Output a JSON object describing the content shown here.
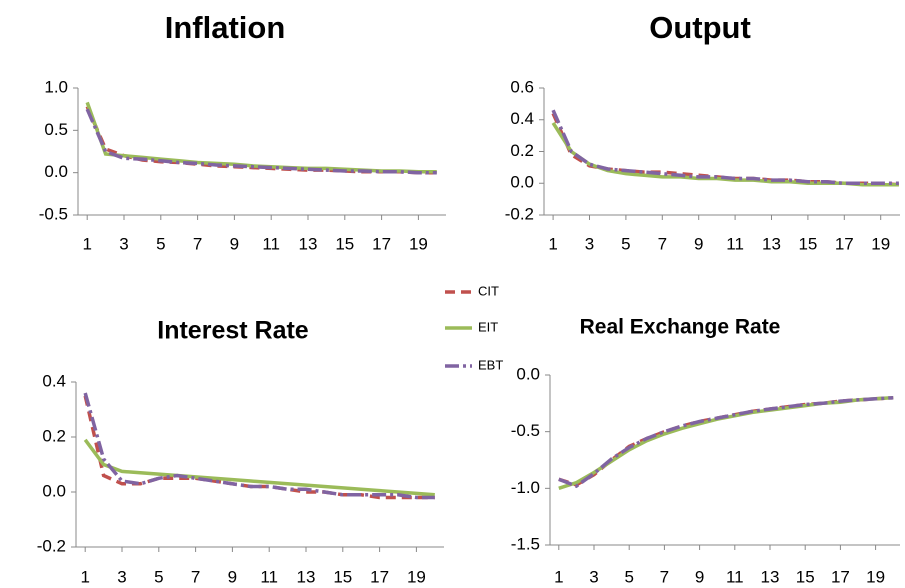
{
  "chart_data": [
    {
      "type": "line",
      "title": "Inflation",
      "x": [
        1,
        2,
        3,
        4,
        5,
        6,
        7,
        8,
        9,
        10,
        11,
        12,
        13,
        14,
        15,
        16,
        17,
        18,
        19,
        20
      ],
      "xlim": [
        0.5,
        20.5
      ],
      "xticks": [
        1,
        3,
        5,
        7,
        9,
        11,
        13,
        15,
        17,
        19
      ],
      "ylim": [
        -0.5,
        1
      ],
      "yticks": [
        -0.5,
        {
          "value": 0,
          "label": "0.0"
        },
        0.5,
        {
          "value": 1,
          "label": "1.0"
        }
      ],
      "series": [
        {
          "name": "CIT",
          "color": "#c0504d",
          "values": [
            0.78,
            0.28,
            0.2,
            0.15,
            0.13,
            0.12,
            0.1,
            0.08,
            0.07,
            0.06,
            0.05,
            0.04,
            0.03,
            0.03,
            0.02,
            0.01,
            0.01,
            0.01,
            0.0,
            0.0
          ]
        },
        {
          "name": "EIT",
          "color": "#9bbb59",
          "values": [
            0.83,
            0.22,
            0.2,
            0.18,
            0.16,
            0.14,
            0.12,
            0.11,
            0.1,
            0.08,
            0.07,
            0.06,
            0.05,
            0.05,
            0.04,
            0.03,
            0.02,
            0.02,
            0.01,
            0.01
          ]
        },
        {
          "name": "EBT",
          "color": "#8064a2",
          "values": [
            0.75,
            0.25,
            0.17,
            0.16,
            0.14,
            0.12,
            0.11,
            0.09,
            0.08,
            0.07,
            0.06,
            0.05,
            0.04,
            0.03,
            0.02,
            0.02,
            0.01,
            0.01,
            0.0,
            0.0
          ]
        }
      ]
    },
    {
      "type": "line",
      "title": "Output",
      "x": [
        1,
        2,
        3,
        4,
        5,
        6,
        7,
        8,
        9,
        10,
        11,
        12,
        13,
        14,
        15,
        16,
        17,
        18,
        19,
        20
      ],
      "xlim": [
        0.5,
        20.5
      ],
      "xticks": [
        1,
        3,
        5,
        7,
        9,
        11,
        13,
        15,
        17,
        19
      ],
      "ylim": [
        -0.2,
        0.6
      ],
      "yticks": [
        -0.2,
        {
          "value": 0,
          "label": "0.0"
        },
        0.2,
        0.4,
        0.6
      ],
      "series": [
        {
          "name": "CIT",
          "color": "#c0504d",
          "values": [
            0.44,
            0.18,
            0.11,
            0.09,
            0.08,
            0.07,
            0.07,
            0.06,
            0.05,
            0.04,
            0.03,
            0.03,
            0.02,
            0.02,
            0.01,
            0.01,
            0.0,
            0.0,
            0.0,
            -0.01
          ]
        },
        {
          "name": "EIT",
          "color": "#9bbb59",
          "values": [
            0.38,
            0.2,
            0.12,
            0.08,
            0.06,
            0.05,
            0.04,
            0.04,
            0.03,
            0.03,
            0.02,
            0.02,
            0.01,
            0.01,
            0.0,
            0.0,
            0.0,
            -0.01,
            -0.01,
            -0.01
          ]
        },
        {
          "name": "EBT",
          "color": "#8064a2",
          "values": [
            0.46,
            0.2,
            0.12,
            0.09,
            0.08,
            0.07,
            0.06,
            0.05,
            0.04,
            0.04,
            0.03,
            0.03,
            0.02,
            0.02,
            0.01,
            0.01,
            0.0,
            0.0,
            0.0,
            0.0
          ]
        }
      ]
    },
    {
      "type": "line",
      "title": "Interest Rate",
      "x": [
        1,
        2,
        3,
        4,
        5,
        6,
        7,
        8,
        9,
        10,
        11,
        12,
        13,
        14,
        15,
        16,
        17,
        18,
        19,
        20
      ],
      "xlim": [
        0.5,
        20.5
      ],
      "xticks": [
        1,
        3,
        5,
        7,
        9,
        11,
        13,
        15,
        17,
        19
      ],
      "ylim": [
        -0.2,
        0.4
      ],
      "yticks": [
        -0.2,
        {
          "value": 0,
          "label": "0.0"
        },
        0.2,
        0.4
      ],
      "series": [
        {
          "name": "CIT",
          "color": "#c0504d",
          "values": [
            0.35,
            0.06,
            0.03,
            0.03,
            0.05,
            0.05,
            0.05,
            0.04,
            0.03,
            0.02,
            0.02,
            0.01,
            0.0,
            0.0,
            -0.01,
            -0.01,
            -0.02,
            -0.02,
            -0.02,
            -0.02
          ]
        },
        {
          "name": "EIT",
          "color": "#9bbb59",
          "values": [
            0.19,
            0.1,
            0.075,
            0.07,
            0.065,
            0.06,
            0.055,
            0.05,
            0.045,
            0.04,
            0.035,
            0.03,
            0.025,
            0.02,
            0.015,
            0.01,
            0.005,
            0.0,
            -0.005,
            -0.01
          ]
        },
        {
          "name": "EBT",
          "color": "#8064a2",
          "values": [
            0.36,
            0.12,
            0.04,
            0.03,
            0.05,
            0.06,
            0.05,
            0.04,
            0.03,
            0.02,
            0.02,
            0.01,
            0.01,
            0.0,
            -0.01,
            -0.01,
            -0.01,
            -0.01,
            -0.02,
            -0.02
          ]
        }
      ]
    },
    {
      "type": "line",
      "title": "Real Exchange Rate",
      "x": [
        1,
        2,
        3,
        4,
        5,
        6,
        7,
        8,
        9,
        10,
        11,
        12,
        13,
        14,
        15,
        16,
        17,
        18,
        19,
        20
      ],
      "xlim": [
        0.5,
        20.5
      ],
      "xticks": [
        1,
        3,
        5,
        7,
        9,
        11,
        13,
        15,
        17,
        19
      ],
      "ylim": [
        -1.5,
        0
      ],
      "yticks": [
        -1.5,
        {
          "value": -1,
          "label": "-1.0"
        },
        -0.5,
        {
          "value": 0,
          "label": "0.0"
        }
      ],
      "series": [
        {
          "name": "CIT",
          "color": "#c0504d",
          "values": [
            -0.92,
            -0.97,
            -0.88,
            -0.75,
            -0.63,
            -0.56,
            -0.5,
            -0.45,
            -0.41,
            -0.38,
            -0.35,
            -0.32,
            -0.3,
            -0.28,
            -0.26,
            -0.25,
            -0.23,
            -0.22,
            -0.21,
            -0.2
          ]
        },
        {
          "name": "EIT",
          "color": "#9bbb59",
          "values": [
            -1.0,
            -0.95,
            -0.86,
            -0.76,
            -0.66,
            -0.58,
            -0.52,
            -0.47,
            -0.43,
            -0.39,
            -0.36,
            -0.33,
            -0.31,
            -0.29,
            -0.27,
            -0.25,
            -0.24,
            -0.22,
            -0.21,
            -0.2
          ]
        },
        {
          "name": "EBT",
          "color": "#8064a2",
          "values": [
            -0.92,
            -0.98,
            -0.87,
            -0.74,
            -0.64,
            -0.56,
            -0.5,
            -0.45,
            -0.41,
            -0.38,
            -0.35,
            -0.32,
            -0.3,
            -0.28,
            -0.26,
            -0.25,
            -0.23,
            -0.22,
            -0.21,
            -0.2
          ]
        }
      ]
    }
  ]
}
